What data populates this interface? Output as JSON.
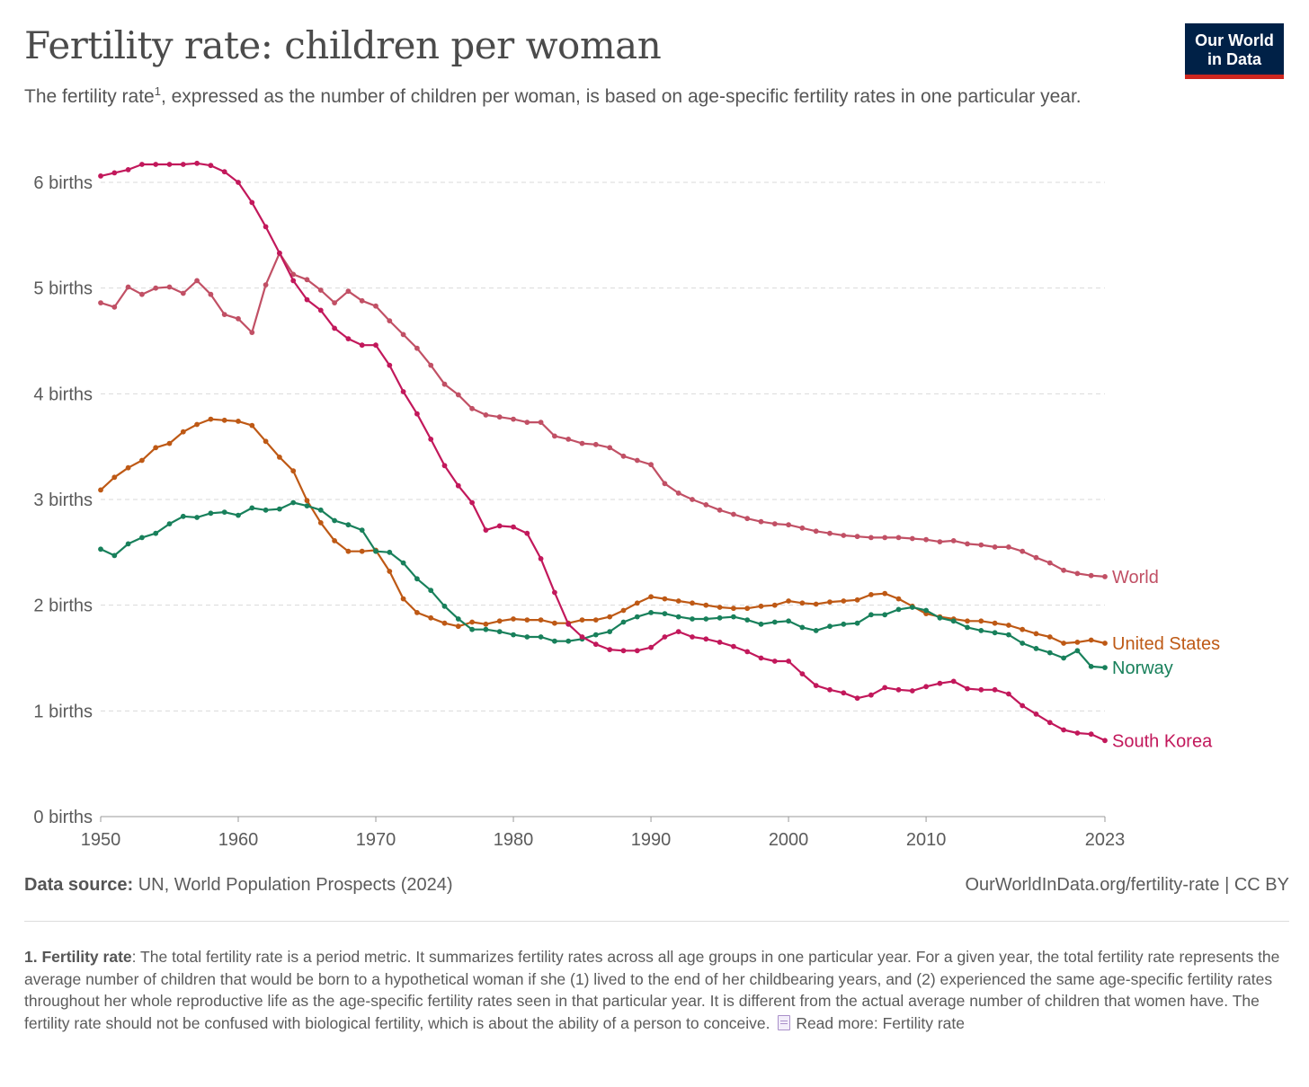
{
  "header": {
    "title": "Fertility rate: children per woman",
    "subtitle_pre": "The fertility rate",
    "subtitle_sup": "1",
    "subtitle_post": ", expressed as the number of children per woman, is based on age-specific fertility rates in one particular year.",
    "logo_line1": "Our World",
    "logo_line2": "in Data"
  },
  "footer": {
    "source_label": "Data source:",
    "source_text": "UN, World Population Prospects (2024)",
    "license": "OurWorldInData.org/fertility-rate | CC BY",
    "note_label": "1. Fertility rate",
    "note_text": ": The total fertility rate is a period metric. It summarizes fertility rates across all age groups in one particular year. For a given year, the total fertility rate represents the average number of children that would be born to a hypothetical woman if she (1) lived to the end of her childbearing years, and (2) experienced the same age-specific fertility rates throughout her whole reproductive life as the age-specific fertility rates seen in that particular year. It is different from the actual average number of children that women have. The fertility rate should not be confused with biological fertility, which is about the ability of a person to conceive.",
    "read_more": "Read more: Fertility rate",
    "read_more_icon": "document-icon"
  },
  "chart_data": {
    "type": "line",
    "title": "Fertility rate: children per woman",
    "xlim": [
      1950,
      2023
    ],
    "ylim": [
      0,
      6
    ],
    "x_ticks": [
      1950,
      1960,
      1970,
      1980,
      1990,
      2000,
      2010,
      2023
    ],
    "y_ticks": [
      {
        "value": 0,
        "label": "0 births"
      },
      {
        "value": 1,
        "label": "1 births"
      },
      {
        "value": 2,
        "label": "2 births"
      },
      {
        "value": 3,
        "label": "3 births"
      },
      {
        "value": 4,
        "label": "4 births"
      },
      {
        "value": 5,
        "label": "5 births"
      },
      {
        "value": 6,
        "label": "6 births"
      }
    ],
    "grid": "horizontal dashed",
    "legend": "labels at line ends (right)",
    "x_start": 1950,
    "series": [
      {
        "name": "World",
        "color": "#c15065",
        "values": [
          4.86,
          4.82,
          5.01,
          4.94,
          5.0,
          5.01,
          4.95,
          5.07,
          4.94,
          4.75,
          4.71,
          4.58,
          5.03,
          5.33,
          5.13,
          5.08,
          4.98,
          4.86,
          4.97,
          4.88,
          4.83,
          4.69,
          4.56,
          4.43,
          4.27,
          4.09,
          3.99,
          3.86,
          3.8,
          3.78,
          3.76,
          3.73,
          3.73,
          3.6,
          3.57,
          3.53,
          3.52,
          3.49,
          3.41,
          3.37,
          3.33,
          3.15,
          3.06,
          3.0,
          2.95,
          2.9,
          2.86,
          2.82,
          2.79,
          2.77,
          2.76,
          2.73,
          2.7,
          2.68,
          2.66,
          2.65,
          2.64,
          2.64,
          2.64,
          2.63,
          2.62,
          2.6,
          2.61,
          2.58,
          2.57,
          2.55,
          2.55,
          2.51,
          2.45,
          2.4,
          2.33,
          2.3,
          2.28,
          2.27
        ]
      },
      {
        "name": "United States",
        "color": "#be5915",
        "values": [
          3.09,
          3.21,
          3.3,
          3.37,
          3.49,
          3.53,
          3.64,
          3.71,
          3.76,
          3.75,
          3.74,
          3.7,
          3.55,
          3.4,
          3.27,
          2.99,
          2.78,
          2.61,
          2.51,
          2.51,
          2.52,
          2.32,
          2.06,
          1.93,
          1.88,
          1.83,
          1.8,
          1.84,
          1.82,
          1.85,
          1.87,
          1.86,
          1.86,
          1.83,
          1.83,
          1.86,
          1.86,
          1.89,
          1.95,
          2.02,
          2.08,
          2.06,
          2.04,
          2.02,
          2.0,
          1.98,
          1.97,
          1.97,
          1.99,
          2.0,
          2.04,
          2.02,
          2.01,
          2.03,
          2.04,
          2.05,
          2.1,
          2.11,
          2.06,
          1.99,
          1.92,
          1.89,
          1.87,
          1.85,
          1.85,
          1.83,
          1.81,
          1.77,
          1.73,
          1.7,
          1.64,
          1.65,
          1.67,
          1.64
        ]
      },
      {
        "name": "Norway",
        "color": "#18805b",
        "values": [
          2.53,
          2.47,
          2.58,
          2.64,
          2.68,
          2.77,
          2.84,
          2.83,
          2.87,
          2.88,
          2.85,
          2.92,
          2.9,
          2.91,
          2.97,
          2.94,
          2.9,
          2.8,
          2.76,
          2.71,
          2.51,
          2.5,
          2.4,
          2.25,
          2.14,
          1.99,
          1.87,
          1.77,
          1.77,
          1.75,
          1.72,
          1.7,
          1.7,
          1.66,
          1.66,
          1.68,
          1.72,
          1.75,
          1.84,
          1.89,
          1.93,
          1.92,
          1.89,
          1.87,
          1.87,
          1.88,
          1.89,
          1.86,
          1.82,
          1.84,
          1.85,
          1.79,
          1.76,
          1.8,
          1.82,
          1.83,
          1.91,
          1.91,
          1.96,
          1.98,
          1.95,
          1.88,
          1.85,
          1.79,
          1.76,
          1.74,
          1.72,
          1.64,
          1.59,
          1.55,
          1.5,
          1.57,
          1.42,
          1.41
        ]
      },
      {
        "name": "South Korea",
        "color": "#c2185b",
        "values": [
          6.06,
          6.09,
          6.12,
          6.17,
          6.17,
          6.17,
          6.17,
          6.18,
          6.16,
          6.1,
          6.0,
          5.81,
          5.58,
          5.33,
          5.07,
          4.89,
          4.79,
          4.62,
          4.52,
          4.46,
          4.46,
          4.27,
          4.02,
          3.81,
          3.57,
          3.32,
          3.13,
          2.97,
          2.71,
          2.75,
          2.74,
          2.68,
          2.44,
          2.12,
          1.82,
          1.7,
          1.63,
          1.58,
          1.57,
          1.57,
          1.6,
          1.7,
          1.75,
          1.7,
          1.68,
          1.65,
          1.61,
          1.56,
          1.5,
          1.47,
          1.47,
          1.35,
          1.24,
          1.2,
          1.17,
          1.12,
          1.15,
          1.22,
          1.2,
          1.19,
          1.23,
          1.26,
          1.28,
          1.21,
          1.2,
          1.2,
          1.16,
          1.05,
          0.97,
          0.89,
          0.82,
          0.79,
          0.78,
          0.72
        ]
      }
    ]
  }
}
